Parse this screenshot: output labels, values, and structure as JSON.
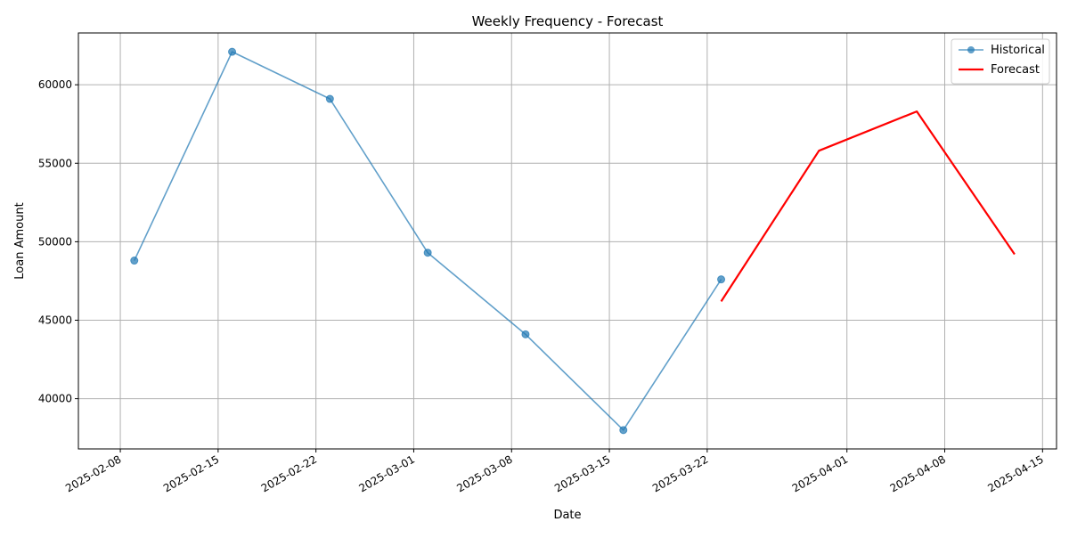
{
  "chart_data": {
    "type": "line",
    "title": "Weekly Frequency - Forecast",
    "xlabel": "Date",
    "ylabel": "Loan Amount",
    "x_axis": "date",
    "xlim": [
      "2025-02-05",
      "2025-04-16"
    ],
    "ylim": [
      36800,
      63300
    ],
    "x_ticks": [
      "2025-02-08",
      "2025-02-15",
      "2025-02-22",
      "2025-03-01",
      "2025-03-08",
      "2025-03-15",
      "2025-03-22",
      "2025-04-01",
      "2025-04-08",
      "2025-04-15"
    ],
    "y_ticks": [
      40000,
      45000,
      50000,
      55000,
      60000
    ],
    "y_tick_labels": [
      "40000",
      "45000",
      "50000",
      "55000",
      "60000"
    ],
    "grid": true,
    "legend_position": "top-right",
    "series": [
      {
        "name": "Historical",
        "style": "line-with-markers",
        "color": "#1f77b4",
        "x": [
          "2025-02-09",
          "2025-02-16",
          "2025-02-23",
          "2025-03-02",
          "2025-03-09",
          "2025-03-16",
          "2025-03-23"
        ],
        "y": [
          48800,
          62100,
          59100,
          49300,
          44100,
          38000,
          47600
        ]
      },
      {
        "name": "Forecast",
        "style": "line",
        "color": "#ff0000",
        "x": [
          "2025-03-23",
          "2025-03-30",
          "2025-04-06",
          "2025-04-13"
        ],
        "y": [
          46200,
          55800,
          58300,
          49200
        ]
      }
    ]
  }
}
